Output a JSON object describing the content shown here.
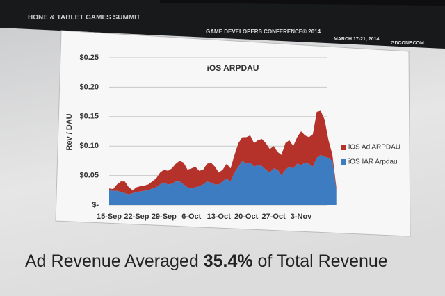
{
  "header": {
    "summit": "HONE & TABLET GAMES SUMMIT",
    "conference": "GAME DEVELOPERS CONFERENCE® 2014",
    "dates": "MARCH 17-21, 2014",
    "site": "GDCONF.COM"
  },
  "caption": {
    "before": "Ad Revenue Averaged",
    "highlight": "35.4%",
    "after": "of Total Revenue"
  },
  "chart_data": {
    "type": "stacked-area",
    "title": "iOS ARPDAU",
    "y_label": "Rev / DAU",
    "categories": [
      "15-Sep",
      null,
      null,
      null,
      null,
      null,
      null,
      "22-Sep",
      null,
      null,
      null,
      null,
      null,
      null,
      "29-Sep",
      null,
      null,
      null,
      null,
      null,
      null,
      "6-Oct",
      null,
      null,
      null,
      null,
      null,
      null,
      "13-Oct",
      null,
      null,
      null,
      null,
      null,
      null,
      "20-Oct",
      null,
      null,
      null,
      null,
      null,
      null,
      "27-Oct",
      null,
      null,
      null,
      null,
      null,
      null,
      "3-Nov",
      null,
      null,
      null,
      null,
      null,
      null,
      null,
      null,
      null
    ],
    "series": [
      {
        "name": "iOS Ad ARPDAU",
        "color": "#b5322b",
        "values": [
          0.003,
          0.003,
          0.011,
          0.018,
          0.02,
          0.012,
          0.005,
          0.008,
          0.009,
          0.009,
          0.01,
          0.012,
          0.015,
          0.02,
          0.022,
          0.023,
          0.026,
          0.03,
          0.035,
          0.037,
          0.03,
          0.034,
          0.035,
          0.026,
          0.025,
          0.03,
          0.034,
          0.03,
          0.02,
          0.02,
          0.025,
          0.022,
          0.03,
          0.04,
          0.04,
          0.045,
          0.046,
          0.04,
          0.042,
          0.046,
          0.045,
          0.04,
          0.038,
          0.03,
          0.035,
          0.045,
          0.045,
          0.038,
          0.045,
          0.057,
          0.046,
          0.045,
          0.055,
          0.078,
          0.075,
          0.063,
          0.03,
          0.01,
          0.005
        ]
      },
      {
        "name": "iOS IAR Arpdau",
        "color": "#3d7cc0",
        "values": [
          0.025,
          0.024,
          0.024,
          0.022,
          0.02,
          0.018,
          0.02,
          0.022,
          0.023,
          0.024,
          0.025,
          0.028,
          0.03,
          0.035,
          0.038,
          0.035,
          0.036,
          0.04,
          0.04,
          0.035,
          0.03,
          0.028,
          0.03,
          0.032,
          0.035,
          0.04,
          0.038,
          0.035,
          0.035,
          0.04,
          0.045,
          0.04,
          0.055,
          0.065,
          0.075,
          0.07,
          0.072,
          0.065,
          0.068,
          0.066,
          0.06,
          0.055,
          0.062,
          0.06,
          0.05,
          0.06,
          0.065,
          0.062,
          0.07,
          0.068,
          0.072,
          0.07,
          0.065,
          0.08,
          0.085,
          0.082,
          0.08,
          0.075,
          0.025
        ]
      }
    ],
    "ylim": [
      0,
      0.25
    ],
    "yticks": [
      {
        "value": 0,
        "label": "$-"
      },
      {
        "value": 0.05,
        "label": "$0.05"
      },
      {
        "value": 0.1,
        "label": "$0.10"
      },
      {
        "value": 0.15,
        "label": "$0.15"
      },
      {
        "value": 0.2,
        "label": "$0.20"
      },
      {
        "value": 0.25,
        "label": "$0.25"
      }
    ],
    "grid": true
  }
}
